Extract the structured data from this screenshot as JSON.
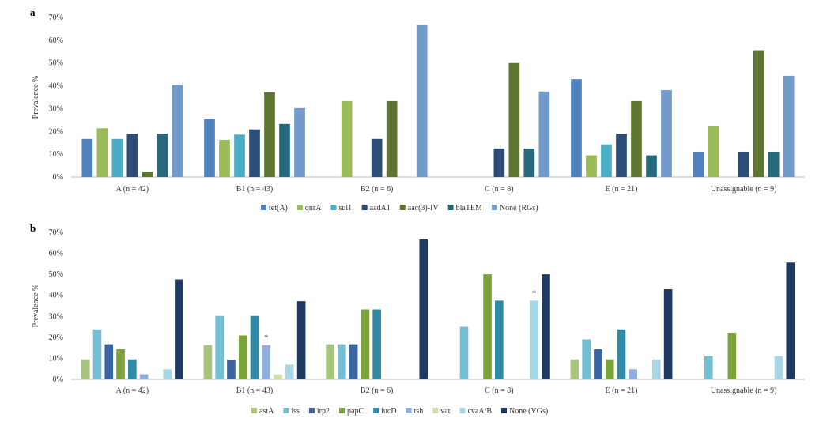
{
  "chart_data": [
    {
      "panel": "a",
      "type": "bar",
      "ylabel": "Prevalence %",
      "ylim": [
        0,
        70
      ],
      "yticks": [
        "0%",
        "10%",
        "20%",
        "30%",
        "40%",
        "50%",
        "60%",
        "70%"
      ],
      "grid": false,
      "legend_position": "bottom",
      "categories": [
        "A (n = 42)",
        "B1 (n = 43)",
        "B2 (n = 6)",
        "C (n = 8)",
        "E (n = 21)",
        "Unassignable (n = 9)"
      ],
      "series": [
        {
          "name": "tet(A)",
          "color": "#4f81bd",
          "values": [
            16.7,
            25.6,
            0,
            0,
            42.9,
            11.1
          ]
        },
        {
          "name": "qnrA",
          "color": "#9bbb59",
          "values": [
            21.4,
            16.3,
            33.3,
            0,
            9.5,
            22.2
          ]
        },
        {
          "name": "sul1",
          "color": "#4bacc6",
          "values": [
            16.7,
            18.6,
            0,
            0,
            14.3,
            0
          ]
        },
        {
          "name": "aadA1",
          "color": "#2c4d75",
          "values": [
            19.0,
            20.9,
            16.7,
            12.5,
            19.0,
            11.1
          ]
        },
        {
          "name": "aac(3)-IV",
          "color": "#5f7530",
          "values": [
            2.4,
            37.2,
            33.3,
            50.0,
            33.3,
            55.6
          ]
        },
        {
          "name": "blaTEM",
          "color": "#276a7c",
          "values": [
            19.0,
            23.3,
            0,
            12.5,
            9.5,
            11.1
          ]
        },
        {
          "name": "None (RGs)",
          "color": "#729aca",
          "values": [
            40.5,
            30.2,
            66.7,
            37.5,
            38.1,
            44.4
          ]
        }
      ],
      "annotations": []
    },
    {
      "panel": "b",
      "type": "bar",
      "ylabel": "Prevalence %",
      "ylim": [
        0,
        70
      ],
      "yticks": [
        "0%",
        "10%",
        "20%",
        "30%",
        "40%",
        "50%",
        "60%",
        "70%"
      ],
      "grid": false,
      "legend_position": "bottom",
      "categories": [
        "A (n = 42)",
        "B1 (n = 43)",
        "B2 (n = 6)",
        "C (n = 8)",
        "E (n = 21)",
        "Unassignable (n = 9)"
      ],
      "series": [
        {
          "name": "astA",
          "color": "#a9c47f",
          "values": [
            9.5,
            16.3,
            16.7,
            0,
            9.5,
            0
          ]
        },
        {
          "name": "iss",
          "color": "#74bdd2",
          "values": [
            23.8,
            30.2,
            16.7,
            25.0,
            19.0,
            11.1
          ]
        },
        {
          "name": "irp2",
          "color": "#3a64a2",
          "values": [
            16.7,
            9.3,
            16.7,
            0,
            14.3,
            0
          ]
        },
        {
          "name": "papC",
          "color": "#7aa33a",
          "values": [
            14.3,
            20.9,
            33.3,
            50.0,
            9.5,
            22.2
          ]
        },
        {
          "name": "iucD",
          "color": "#318aa5",
          "values": [
            9.5,
            30.2,
            33.3,
            37.5,
            23.8,
            0
          ]
        },
        {
          "name": "tsh",
          "color": "#8faede",
          "values": [
            2.4,
            16.3,
            0,
            0,
            4.8,
            0
          ]
        },
        {
          "name": "vat",
          "color": "#cde1ab",
          "values": [
            0,
            2.3,
            0,
            0,
            0,
            0
          ]
        },
        {
          "name": "cvaA/B",
          "color": "#a8d6e5",
          "values": [
            4.8,
            7.0,
            0,
            37.5,
            9.5,
            11.1
          ]
        },
        {
          "name": "None (VGs)",
          "color": "#1f3a60",
          "values": [
            47.6,
            37.2,
            66.7,
            50.0,
            42.9,
            55.6
          ]
        }
      ],
      "annotations": [
        {
          "text": "*",
          "category": "B1 (n = 43)",
          "series": "tsh"
        },
        {
          "text": "*",
          "category": "C (n = 8)",
          "series": "cvaA/B"
        }
      ]
    }
  ]
}
